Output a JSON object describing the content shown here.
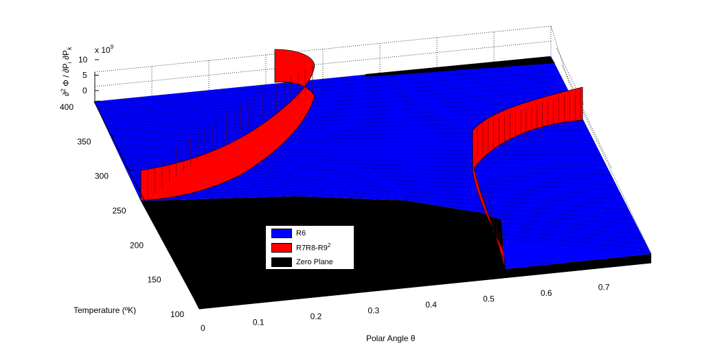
{
  "chart_data": {
    "type": "surface3d",
    "xlabel": "Polar Angle θ",
    "ylabel": "Temperature (ºK)",
    "zlabel": "∂² Φ / ∂P_i ∂P_k",
    "zlabel_parts": {
      "pre": "∂",
      "exp": "2",
      "mid": " Φ / ∂P",
      "sub1": "i",
      "mid2": " ∂P",
      "sub2": "k"
    },
    "z_exponent": {
      "base": "x 10",
      "power": "9"
    },
    "x_ticks": [
      "0",
      "0.1",
      "0.2",
      "0.3",
      "0.4",
      "0.5",
      "0.6",
      "0.7"
    ],
    "x_tick_values": [
      0,
      0.1,
      0.2,
      0.3,
      0.4,
      0.5,
      0.6,
      0.7
    ],
    "y_ticks": [
      "100",
      "150",
      "200",
      "250",
      "300",
      "350",
      "400"
    ],
    "y_tick_values": [
      100,
      150,
      200,
      250,
      300,
      350,
      400
    ],
    "z_ticks": [
      "0",
      "5",
      "10"
    ],
    "z_tick_values": [
      0,
      5,
      10
    ],
    "xlim": [
      0,
      0.785
    ],
    "ylim": [
      100,
      400
    ],
    "zlim": [
      0,
      10
    ],
    "grid": true,
    "series": [
      {
        "name": "R6",
        "color": "#0000ff"
      },
      {
        "name": "R7R8-R9²",
        "color": "#ff0000"
      },
      {
        "name": "Zero Plane",
        "color": "#000000"
      }
    ],
    "legend_labels": {
      "r6": "R6",
      "r7_base": "R7R8-R9",
      "r7_exp": "2",
      "zero": "Zero Plane"
    },
    "legend_position": "inside-lower-left"
  }
}
